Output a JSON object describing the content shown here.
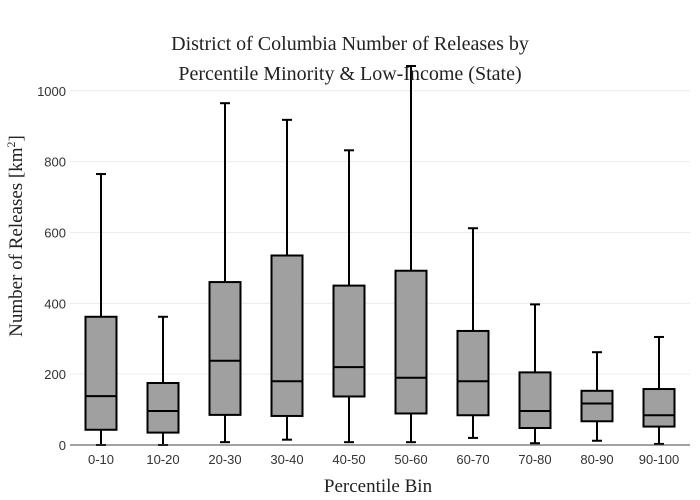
{
  "chart_data": {
    "type": "box",
    "title_line1": "District of Columbia Number of Releases by",
    "title_line2": "Percentile Minority & Low-Income (State)",
    "xlabel": "Percentile Bin",
    "ylabel_main": "Number of Releases  [km",
    "ylabel_sup": "2",
    "ylabel_end": "]",
    "ylim": [
      0,
      1070
    ],
    "yticks": [
      0,
      200,
      400,
      600,
      800,
      1000
    ],
    "grid": true,
    "box_color": "#a0a0a0",
    "line_color": "#000000",
    "categories": [
      "0-10",
      "10-20",
      "20-30",
      "30-40",
      "40-50",
      "50-60",
      "60-70",
      "70-80",
      "80-90",
      "90-100"
    ],
    "boxes": [
      {
        "min": 0,
        "q1": 43,
        "median": 138,
        "q3": 362,
        "max": 765
      },
      {
        "min": 0,
        "q1": 35,
        "median": 96,
        "q3": 175,
        "max": 362
      },
      {
        "min": 8,
        "q1": 85,
        "median": 238,
        "q3": 460,
        "max": 965
      },
      {
        "min": 15,
        "q1": 82,
        "median": 180,
        "q3": 535,
        "max": 918
      },
      {
        "min": 8,
        "q1": 137,
        "median": 220,
        "q3": 450,
        "max": 832
      },
      {
        "min": 8,
        "q1": 89,
        "median": 190,
        "q3": 492,
        "max": 1070
      },
      {
        "min": 20,
        "q1": 84,
        "median": 180,
        "q3": 322,
        "max": 612
      },
      {
        "min": 5,
        "q1": 48,
        "median": 96,
        "q3": 205,
        "max": 397
      },
      {
        "min": 12,
        "q1": 67,
        "median": 117,
        "q3": 153,
        "max": 262
      },
      {
        "min": 3,
        "q1": 52,
        "median": 84,
        "q3": 158,
        "max": 305
      }
    ]
  }
}
